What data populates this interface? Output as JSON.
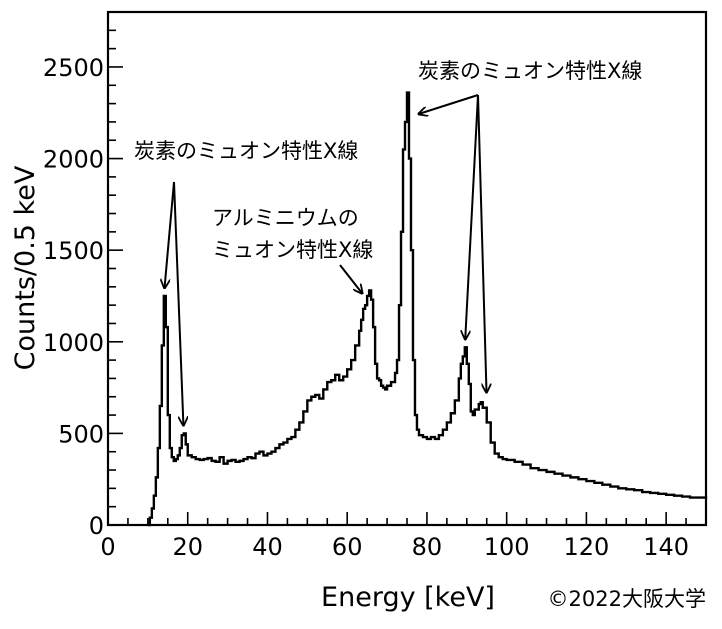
{
  "chart_data": {
    "type": "histogram",
    "title": "",
    "xlabel": "Energy [keV]",
    "ylabel": "Counts/0.5 keV",
    "xlim": [
      0,
      150
    ],
    "ylim": [
      0,
      2800
    ],
    "xticks": [
      0,
      20,
      40,
      60,
      80,
      100,
      120,
      140
    ],
    "yticks": [
      0,
      500,
      1000,
      1500,
      2000,
      2500
    ],
    "grid": false,
    "legend": "none",
    "bin_width": 0.5,
    "series": [
      {
        "points": [
          [
            10,
            0
          ],
          [
            10.5,
            40
          ],
          [
            11,
            90
          ],
          [
            11.5,
            160
          ],
          [
            12,
            260
          ],
          [
            12.5,
            420
          ],
          [
            13,
            650
          ],
          [
            13.5,
            980
          ],
          [
            14,
            1250
          ],
          [
            14.5,
            1080
          ],
          [
            15,
            600
          ],
          [
            15.5,
            420
          ],
          [
            16,
            370
          ],
          [
            16.5,
            350
          ],
          [
            17,
            360
          ],
          [
            17.5,
            380
          ],
          [
            18,
            420
          ],
          [
            18.5,
            490
          ],
          [
            19,
            500
          ],
          [
            19.5,
            440
          ],
          [
            20,
            380
          ],
          [
            21,
            370
          ],
          [
            22,
            360
          ],
          [
            23,
            355
          ],
          [
            24,
            360
          ],
          [
            25,
            365
          ],
          [
            26,
            350
          ],
          [
            27,
            345
          ],
          [
            28,
            370
          ],
          [
            29,
            335
          ],
          [
            30,
            350
          ],
          [
            31,
            355
          ],
          [
            32,
            345
          ],
          [
            33,
            350
          ],
          [
            34,
            360
          ],
          [
            35,
            370
          ],
          [
            36,
            365
          ],
          [
            37,
            390
          ],
          [
            38,
            400
          ],
          [
            39,
            380
          ],
          [
            40,
            390
          ],
          [
            41,
            400
          ],
          [
            42,
            420
          ],
          [
            43,
            440
          ],
          [
            44,
            450
          ],
          [
            45,
            470
          ],
          [
            46,
            480
          ],
          [
            47,
            520
          ],
          [
            48,
            560
          ],
          [
            49,
            620
          ],
          [
            50,
            680
          ],
          [
            51,
            700
          ],
          [
            52,
            710
          ],
          [
            53,
            690
          ],
          [
            54,
            740
          ],
          [
            55,
            780
          ],
          [
            56,
            790
          ],
          [
            57,
            820
          ],
          [
            58,
            790
          ],
          [
            59,
            810
          ],
          [
            60,
            850
          ],
          [
            61,
            900
          ],
          [
            62,
            980
          ],
          [
            63,
            1060
          ],
          [
            63.5,
            1120
          ],
          [
            64,
            1180
          ],
          [
            64.5,
            1200
          ],
          [
            65,
            1250
          ],
          [
            65.5,
            1280
          ],
          [
            66,
            1230
          ],
          [
            66.5,
            1080
          ],
          [
            67,
            880
          ],
          [
            67.5,
            800
          ],
          [
            68,
            790
          ],
          [
            68.5,
            760
          ],
          [
            69,
            750
          ],
          [
            69.5,
            740
          ],
          [
            70,
            760
          ],
          [
            71,
            780
          ],
          [
            72,
            830
          ],
          [
            72.5,
            900
          ],
          [
            73,
            1200
          ],
          [
            73.5,
            1600
          ],
          [
            74,
            2050
          ],
          [
            74.5,
            2200
          ],
          [
            75,
            2360
          ],
          [
            75.5,
            2000
          ],
          [
            76,
            1500
          ],
          [
            76.5,
            900
          ],
          [
            77,
            600
          ],
          [
            77.5,
            520
          ],
          [
            78,
            490
          ],
          [
            79,
            480
          ],
          [
            80,
            470
          ],
          [
            81,
            480
          ],
          [
            82,
            470
          ],
          [
            83,
            490
          ],
          [
            84,
            520
          ],
          [
            85,
            560
          ],
          [
            86,
            610
          ],
          [
            87,
            680
          ],
          [
            88,
            800
          ],
          [
            88.5,
            880
          ],
          [
            89,
            920
          ],
          [
            89.5,
            970
          ],
          [
            90,
            880
          ],
          [
            90.5,
            770
          ],
          [
            91,
            620
          ],
          [
            91.5,
            600
          ],
          [
            92,
            630
          ],
          [
            93,
            660
          ],
          [
            93.5,
            670
          ],
          [
            94,
            640
          ],
          [
            95,
            560
          ],
          [
            96,
            450
          ],
          [
            97,
            390
          ],
          [
            98,
            370
          ],
          [
            99,
            360
          ],
          [
            100,
            355
          ],
          [
            102,
            345
          ],
          [
            104,
            330
          ],
          [
            106,
            310
          ],
          [
            108,
            300
          ],
          [
            110,
            290
          ],
          [
            112,
            280
          ],
          [
            114,
            270
          ],
          [
            116,
            260
          ],
          [
            118,
            250
          ],
          [
            120,
            240
          ],
          [
            122,
            230
          ],
          [
            124,
            220
          ],
          [
            126,
            210
          ],
          [
            128,
            200
          ],
          [
            130,
            195
          ],
          [
            132,
            190
          ],
          [
            134,
            180
          ],
          [
            136,
            175
          ],
          [
            138,
            170
          ],
          [
            140,
            165
          ],
          [
            142,
            160
          ],
          [
            144,
            155
          ],
          [
            146,
            150
          ],
          [
            148,
            150
          ],
          [
            150,
            145
          ]
        ]
      }
    ],
    "annotations": [
      {
        "text": "炭素のミュオン特性X線",
        "targets": [
          [
            14,
            1250
          ],
          [
            19,
            500
          ]
        ]
      },
      {
        "text": "アルミニウムの",
        "line2": "ミュオン特性X線",
        "targets": [
          [
            65,
            1230
          ]
        ]
      },
      {
        "text": "炭素のミュオン特性X線",
        "targets": [
          [
            76,
            2230
          ],
          [
            89.5,
            970
          ],
          [
            95,
            680
          ]
        ]
      }
    ],
    "credit": "©2022大阪大学"
  }
}
